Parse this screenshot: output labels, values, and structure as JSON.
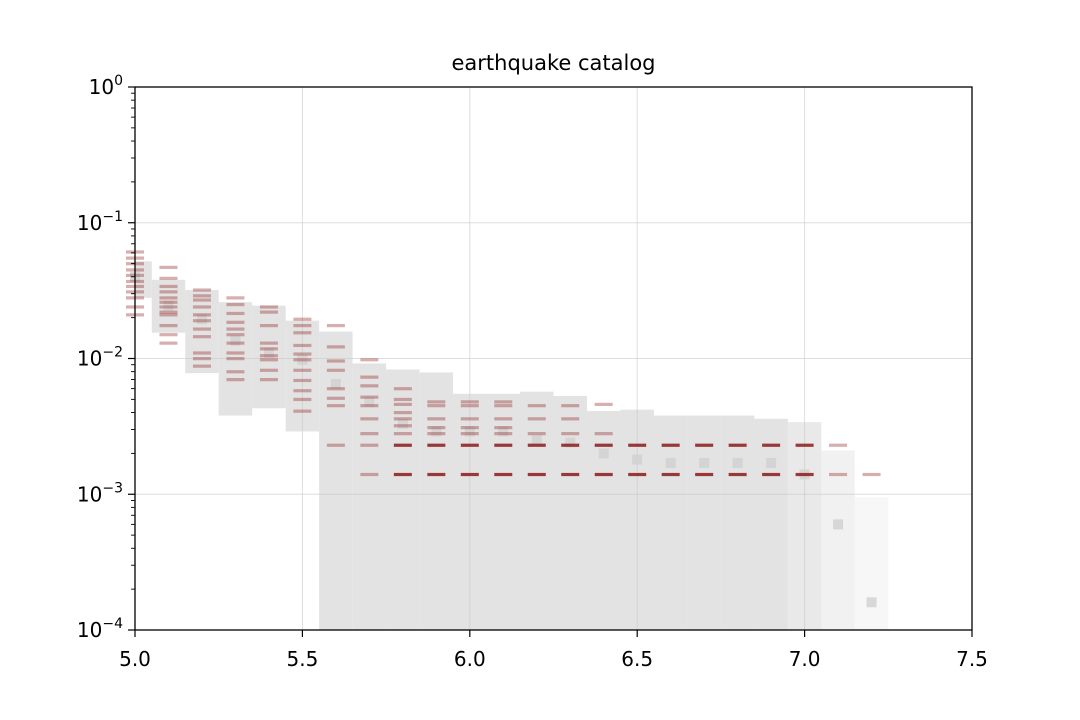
{
  "chart_data": {
    "type": "scatter",
    "title": "earthquake catalog",
    "xlabel": "",
    "ylabel": "",
    "xlim": [
      5.0,
      7.5
    ],
    "ylim": [
      0.0001,
      1
    ],
    "yscale": "log",
    "grid": true,
    "x_ticks": [
      {
        "value": 5.0,
        "label": "5.0"
      },
      {
        "value": 5.5,
        "label": "5.5"
      },
      {
        "value": 6.0,
        "label": "6.0"
      },
      {
        "value": 6.5,
        "label": "6.5"
      },
      {
        "value": 7.0,
        "label": "7.0"
      },
      {
        "value": 7.5,
        "label": "7.5"
      }
    ],
    "y_ticks": [
      {
        "value": 1,
        "base": "10",
        "exp": "0"
      },
      {
        "value": 0.1,
        "base": "10",
        "exp": "−1"
      },
      {
        "value": 0.01,
        "base": "10",
        "exp": "−2"
      },
      {
        "value": 0.001,
        "base": "10",
        "exp": "−3"
      },
      {
        "value": 0.0001,
        "base": "10",
        "exp": "−4"
      }
    ],
    "colors": {
      "band": "#e3e3e3",
      "marker": "#8b1a1a",
      "grid": "#dcdcdc"
    },
    "bins": [
      {
        "x": 5.0,
        "low": 0.028,
        "high": 0.052,
        "center": 0.04,
        "levels": [
          0.061,
          0.055,
          0.05,
          0.045,
          0.041,
          0.037,
          0.034,
          0.031,
          0.028,
          0.024,
          0.021
        ]
      },
      {
        "x": 5.1,
        "low": 0.0155,
        "high": 0.038,
        "center": 0.0245,
        "levels": [
          0.047,
          0.039,
          0.034,
          0.031,
          0.028,
          0.026,
          0.024,
          0.022,
          0.021,
          0.0175,
          0.015,
          0.013
        ]
      },
      {
        "x": 5.2,
        "low": 0.0078,
        "high": 0.032,
        "center": 0.0195,
        "levels": [
          0.032,
          0.029,
          0.027,
          0.024,
          0.021,
          0.019,
          0.0165,
          0.0145,
          0.011,
          0.01,
          0.0088
        ]
      },
      {
        "x": 5.3,
        "low": 0.0038,
        "high": 0.026,
        "center": 0.0135,
        "levels": [
          0.028,
          0.025,
          0.0215,
          0.0185,
          0.0165,
          0.015,
          0.013,
          0.011,
          0.01,
          0.008,
          0.007
        ]
      },
      {
        "x": 5.4,
        "low": 0.0043,
        "high": 0.0245,
        "center": 0.011,
        "levels": [
          0.024,
          0.022,
          0.0175,
          0.013,
          0.0118,
          0.0105,
          0.0098,
          0.0082,
          0.007
        ]
      },
      {
        "x": 5.5,
        "low": 0.0029,
        "high": 0.019,
        "center": 0.0098,
        "levels": [
          0.0195,
          0.0175,
          0.0155,
          0.0125,
          0.0108,
          0.0098,
          0.0082,
          0.0069,
          0.0058,
          0.005,
          0.0041
        ]
      },
      {
        "x": 5.6,
        "low": 0.0001,
        "high": 0.0158,
        "center": 0.0065,
        "levels": [
          0.0175,
          0.0122,
          0.0096,
          0.0082,
          0.006,
          0.0051,
          0.0045,
          0.0023
        ]
      },
      {
        "x": 5.7,
        "low": 0.0001,
        "high": 0.0092,
        "center": 0.0048,
        "levels": [
          0.0098,
          0.0073,
          0.0063,
          0.0052,
          0.0045,
          0.0036,
          0.0028,
          0.0023,
          0.0014
        ]
      },
      {
        "x": 5.8,
        "low": 0.0001,
        "high": 0.0083,
        "center": 0.0033,
        "levels": [
          0.006,
          0.005,
          0.0046,
          0.004,
          0.0036,
          0.0032,
          0.0028,
          0.0023,
          0.0014
        ]
      },
      {
        "x": 5.9,
        "low": 0.0001,
        "high": 0.0079,
        "center": 0.0029,
        "levels": [
          0.0048,
          0.0045,
          0.0036,
          0.0031,
          0.0028,
          0.0023,
          0.0014
        ]
      },
      {
        "x": 6.0,
        "low": 0.0001,
        "high": 0.0055,
        "center": 0.0029,
        "levels": [
          0.0048,
          0.0045,
          0.0036,
          0.0031,
          0.0028,
          0.0023,
          0.0014
        ]
      },
      {
        "x": 6.1,
        "low": 0.0001,
        "high": 0.0055,
        "center": 0.0029,
        "levels": [
          0.0048,
          0.0045,
          0.0036,
          0.0031,
          0.0028,
          0.0023,
          0.0014
        ]
      },
      {
        "x": 6.2,
        "low": 0.0001,
        "high": 0.0057,
        "center": 0.0025,
        "levels": [
          0.0045,
          0.0036,
          0.0028,
          0.0023,
          0.0014
        ]
      },
      {
        "x": 6.3,
        "low": 0.0001,
        "high": 0.0053,
        "center": 0.0024,
        "levels": [
          0.0045,
          0.0036,
          0.0028,
          0.0023,
          0.0014
        ]
      },
      {
        "x": 6.4,
        "low": 0.0001,
        "high": 0.0041,
        "center": 0.002,
        "levels": [
          0.0046,
          0.0028,
          0.0023,
          0.0014
        ]
      },
      {
        "x": 6.5,
        "low": 0.0001,
        "high": 0.0042,
        "center": 0.0018,
        "levels": [
          0.0023,
          0.0014
        ]
      },
      {
        "x": 6.6,
        "low": 0.0001,
        "high": 0.0038,
        "center": 0.0017,
        "levels": [
          0.0023,
          0.0014
        ]
      },
      {
        "x": 6.7,
        "low": 0.0001,
        "high": 0.0038,
        "center": 0.0017,
        "levels": [
          0.0023,
          0.0014
        ]
      },
      {
        "x": 6.8,
        "low": 0.0001,
        "high": 0.0038,
        "center": 0.0017,
        "levels": [
          0.0023,
          0.0014
        ]
      },
      {
        "x": 6.9,
        "low": 0.0001,
        "high": 0.0036,
        "center": 0.0017,
        "levels": [
          0.0023,
          0.0014
        ]
      },
      {
        "x": 7.0,
        "low": 0.0001,
        "high": 0.0034,
        "center": 0.0014,
        "levels": [
          0.0023,
          0.0014
        ]
      },
      {
        "x": 7.1,
        "low": 0.0001,
        "high": 0.0021,
        "center": 0.0006,
        "levels": [
          0.0023,
          0.0014
        ]
      },
      {
        "x": 7.2,
        "low": 0.0001,
        "high": 0.00095,
        "center": 0.00016,
        "levels": [
          0.0014
        ]
      }
    ]
  }
}
